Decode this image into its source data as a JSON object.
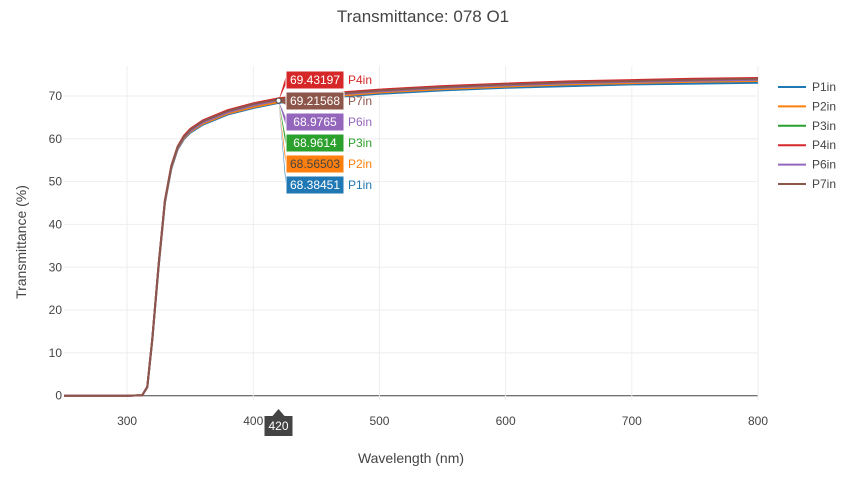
{
  "chart_data": {
    "type": "line",
    "title": "Transmittance: 078 O1",
    "xlabel": "Wavelength (nm)",
    "ylabel": "Transmittance (%)",
    "xlim": [
      250,
      800
    ],
    "ylim": [
      -1,
      77
    ],
    "xticks": [
      300,
      400,
      500,
      600,
      700,
      800
    ],
    "yticks": [
      0,
      10,
      20,
      30,
      40,
      50,
      60,
      70
    ],
    "grid": true,
    "legend_position": "right",
    "x": [
      250,
      300,
      312,
      316,
      320,
      325,
      330,
      335,
      340,
      345,
      350,
      360,
      380,
      400,
      420,
      450,
      500,
      550,
      600,
      650,
      700,
      750,
      800
    ],
    "series": [
      {
        "name": "P1in",
        "color": "#1f77b4",
        "values": [
          0,
          0,
          0.1,
          2.0,
          13.0,
          30.0,
          45.0,
          53.0,
          57.5,
          59.9,
          61.4,
          63.3,
          65.7,
          67.2,
          68.38,
          69.4,
          70.5,
          71.3,
          71.9,
          72.3,
          72.7,
          72.9,
          73.1
        ]
      },
      {
        "name": "P2in",
        "color": "#ff7f0e",
        "values": [
          0,
          0,
          0.1,
          2.0,
          13.1,
          30.2,
          45.2,
          53.2,
          57.7,
          60.1,
          61.6,
          63.5,
          65.9,
          67.4,
          68.57,
          69.6,
          70.8,
          71.6,
          72.2,
          72.7,
          73.0,
          73.3,
          73.5
        ]
      },
      {
        "name": "P3in",
        "color": "#2ca02c",
        "values": [
          0,
          0,
          0.1,
          2.0,
          13.2,
          30.4,
          45.4,
          53.4,
          57.9,
          60.3,
          61.8,
          63.8,
          66.2,
          67.8,
          68.96,
          70.0,
          71.1,
          71.9,
          72.5,
          73.0,
          73.3,
          73.6,
          73.8
        ]
      },
      {
        "name": "P4in",
        "color": "#d62728",
        "values": [
          0,
          0,
          0.1,
          2.1,
          13.3,
          30.6,
          45.6,
          53.7,
          58.2,
          60.7,
          62.3,
          64.3,
          66.7,
          68.3,
          69.43,
          70.4,
          71.5,
          72.3,
          72.9,
          73.4,
          73.7,
          74.0,
          74.2
        ]
      },
      {
        "name": "P6in",
        "color": "#9467bd",
        "values": [
          0,
          0,
          0.1,
          2.0,
          13.2,
          30.4,
          45.4,
          53.4,
          57.9,
          60.3,
          61.8,
          63.8,
          66.2,
          67.8,
          68.98,
          70.0,
          71.1,
          71.9,
          72.5,
          73.0,
          73.3,
          73.6,
          73.8
        ]
      },
      {
        "name": "P7in",
        "color": "#8c564b",
        "values": [
          0,
          0,
          0.1,
          2.1,
          13.3,
          30.5,
          45.5,
          53.6,
          58.1,
          60.5,
          62.1,
          64.1,
          66.5,
          68.1,
          69.22,
          70.2,
          71.3,
          72.1,
          72.7,
          73.2,
          73.5,
          73.8,
          74.0
        ]
      }
    ],
    "hover": {
      "x": 420,
      "x_label": "420",
      "labels": [
        {
          "series": "P4in",
          "value": "69.43197"
        },
        {
          "series": "P7in",
          "value": "69.21568"
        },
        {
          "series": "P6in",
          "value": "68.9765"
        },
        {
          "series": "P3in",
          "value": "68.9614"
        },
        {
          "series": "P2in",
          "value": "68.56503"
        },
        {
          "series": "P1in",
          "value": "68.38451"
        }
      ]
    }
  }
}
